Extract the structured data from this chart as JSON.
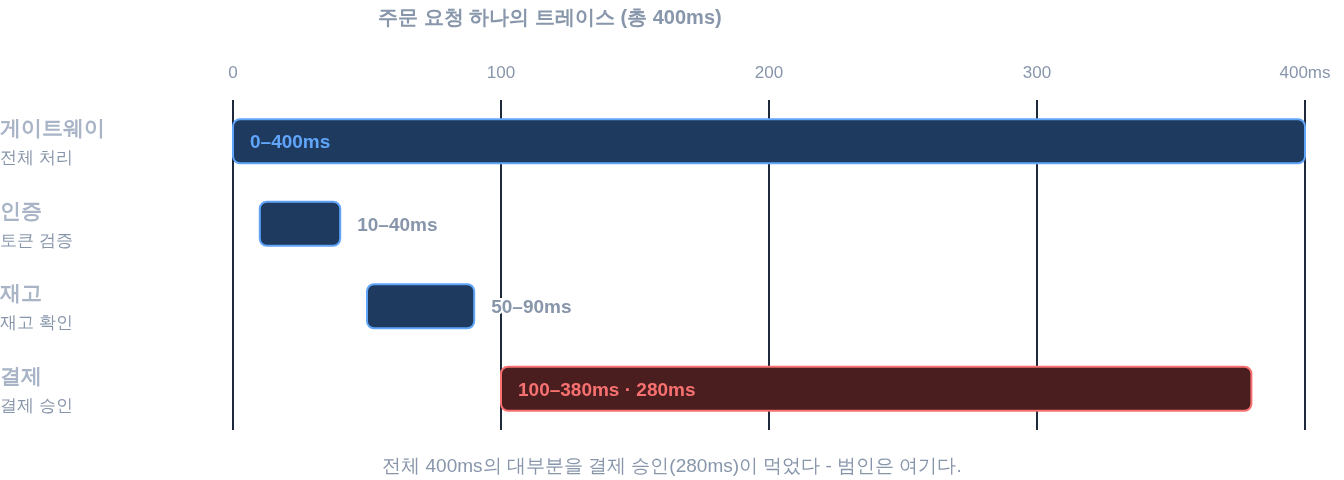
{
  "chart_data": {
    "type": "bar",
    "orientation": "horizontal",
    "title": "주문 요청 하나의 트레이스 (총 400ms)",
    "categories": [
      "게이트웨이\n전체 처리",
      "인증\n토큰 검증",
      "재고\n재고 확인",
      "결제\n결제 승인"
    ],
    "base": [
      0,
      10,
      50,
      100
    ],
    "values": [
      400,
      30,
      40,
      280
    ],
    "colors": [
      "#1e3a5f",
      "#1e3a5f",
      "#1e3a5f",
      "#4a1d1f"
    ],
    "value_labels": [
      "0–400ms",
      "10–40ms",
      "50–90ms",
      "100–380ms · 280ms"
    ],
    "xlim": [
      0,
      400
    ],
    "xticks": [
      0,
      100,
      200,
      300,
      {
        "value": 400,
        "label": "400ms"
      }
    ],
    "grid": "x",
    "annotations": [
      "전체 400ms의 대부분을 결제 승인(280ms)이 먹었다 - 범인은 여기다."
    ]
  }
}
